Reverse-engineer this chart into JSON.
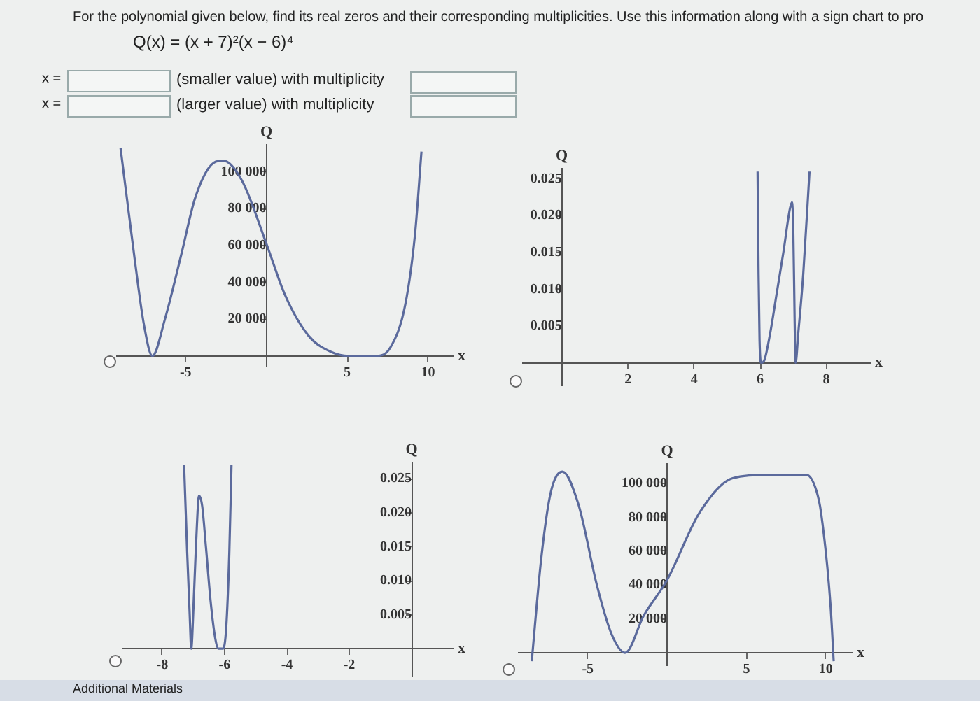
{
  "chart_data": [
    {
      "type": "other",
      "title": "For the polynomial given below, find its real zeros and their corresponding multiplicities. Use this information along with a sign chart to pro",
      "annotations": [
        "Q(x) = (x + 7)²(x − 6)⁴",
        "x =",
        "(smaller value) with multiplicity",
        "x =",
        "(larger value)  with multiplicity",
        "Additional Materials"
      ]
    },
    {
      "type": "line",
      "xlabel": "x",
      "ylabel": "Q",
      "color": "#5b6a9c",
      "marker": "none",
      "grid": false,
      "xlim": [
        -9.3,
        11.5
      ],
      "ylim": [
        -5000,
        115000
      ],
      "xticks": [
        -5,
        5,
        10
      ],
      "yticks": [
        {
          "value": 20000,
          "label": "20 000"
        },
        {
          "value": 40000,
          "label": "40 000"
        },
        {
          "value": 60000,
          "label": "60 000"
        },
        {
          "value": 80000,
          "label": "80 000"
        },
        {
          "value": 100000,
          "label": "100 000"
        }
      ],
      "x": [
        -9.03,
        -8.16,
        -7.58,
        -7.06,
        -6.28,
        -5.27,
        -4.4,
        -3.24,
        -2.66,
        -1.5,
        0,
        1.16,
        2.61,
        4.06,
        5.07,
        6.07,
        6.8,
        7.7,
        8.6,
        9.2,
        9.6
      ],
      "values": [
        113000,
        53000,
        17000,
        0,
        20000,
        55000,
        86000,
        105000,
        106000,
        95000,
        61000,
        33000,
        11000,
        2000,
        0,
        0,
        0,
        5000,
        28000,
        66000,
        111000
      ]
    },
    {
      "type": "line",
      "xlabel": "x",
      "ylabel": "Q",
      "color": "#5b6a9c",
      "marker": "none",
      "grid": false,
      "xlim": [
        -1.2,
        9.3
      ],
      "ylim": [
        -0.003,
        0.0265
      ],
      "xticks": [
        2,
        4,
        6,
        8
      ],
      "yticks": [
        0.005,
        {
          "value": 0.01,
          "label": "0.010"
        },
        0.015,
        {
          "value": 0.02,
          "label": "0.020"
        },
        0.025
      ],
      "x": [
        5.92,
        5.95,
        5.98,
        6.03,
        6.12,
        6.3,
        6.5,
        6.7,
        6.9,
        6.96,
        7.0,
        7.04,
        7.07,
        7.15,
        7.3,
        7.49
      ],
      "values": [
        0.026,
        0.012,
        0.003,
        0,
        0.0003,
        0.004,
        0.0095,
        0.015,
        0.021,
        0.0218,
        0.018,
        0.006,
        0,
        0.004,
        0.012,
        0.026
      ]
    },
    {
      "type": "line",
      "xlabel": "x",
      "ylabel": "Q",
      "color": "#5b6a9c",
      "marker": "none",
      "grid": false,
      "xlim": [
        -9.3,
        1.3
      ],
      "ylim": [
        -0.004,
        0.0275
      ],
      "xticks": [
        -8,
        -6,
        -4,
        -2
      ],
      "yticks": [
        0.005,
        {
          "value": 0.01,
          "label": "0.010"
        },
        0.015,
        {
          "value": 0.02,
          "label": "0.020"
        },
        0.025
      ],
      "x": [
        -7.3,
        -7.2,
        -7.12,
        -7.07,
        -7.0,
        -6.92,
        -6.82,
        -6.72,
        -6.6,
        -6.45,
        -6.3,
        -6.2,
        -6.05,
        -5.95,
        -5.85,
        -5.78
      ],
      "values": [
        0.027,
        0.014,
        0.005,
        0,
        0.006,
        0.015,
        0.0225,
        0.021,
        0.015,
        0.007,
        0.0015,
        0,
        0,
        0.003,
        0.014,
        0.027
      ]
    },
    {
      "type": "line",
      "xlabel": "x",
      "ylabel": "Q",
      "color": "#5b6a9c",
      "marker": "none",
      "grid": false,
      "xlim": [
        -9.4,
        11.6
      ],
      "ylim": [
        -7000,
        112000
      ],
      "xticks": [
        -5,
        5,
        10
      ],
      "yticks": [
        {
          "value": 20000,
          "label": "20 000"
        },
        {
          "value": 40000,
          "label": "40 000"
        },
        {
          "value": 60000,
          "label": "60 000"
        },
        {
          "value": 80000,
          "label": "80 000"
        },
        {
          "value": 100000,
          "label": "100 000"
        }
      ],
      "x": [
        -8.53,
        -7.94,
        -7.35,
        -6.6,
        -5.6,
        -4.4,
        -3.5,
        -2.65,
        -1.47,
        0,
        2.06,
        4.1,
        6.2,
        7.9,
        8.8,
        9.4,
        9.7,
        10.3,
        10.5
      ],
      "values": [
        -5000,
        55000,
        94000,
        107000,
        88000,
        39000,
        11000,
        0,
        22000,
        43000,
        83000,
        103000,
        105000,
        105000,
        105000,
        96000,
        83000,
        28000,
        -5000
      ]
    }
  ]
}
